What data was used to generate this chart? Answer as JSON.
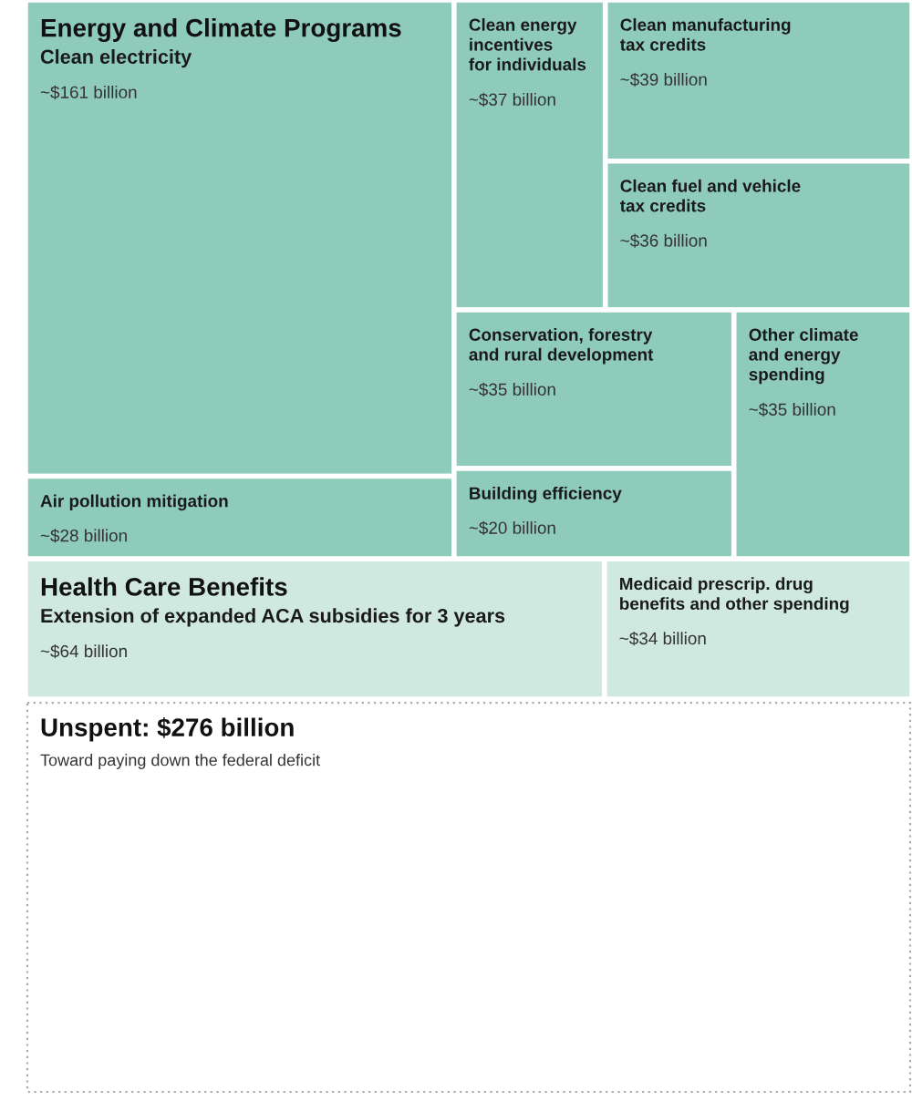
{
  "chart_data": {
    "type": "other",
    "annotations": [
      "Energy and Climate Programs",
      "Health Care Benefits"
    ],
    "categories": [
      "Clean electricity",
      "Air pollution mitigation",
      "Clean energy\nincentives\nfor individuals",
      "Clean manufacturing\ntax credits",
      "Clean fuel and vehicle\ntax credits",
      "Conservation, forestry\nand rural development",
      "Building efficiency",
      "Other climate\nand energy\nspending",
      "Extension of expanded ACA subsidies for 3 years",
      "Medicaid prescrip. drug\nbenefits and other spending",
      "Toward paying down the federal deficit"
    ],
    "values": [
      161,
      28,
      37,
      39,
      36,
      35,
      20,
      35,
      64,
      34,
      276
    ],
    "value_labels": [
      "~$161 billion",
      "~$28 billion",
      "~$37 billion",
      "~$39 billion",
      "~$36 billion",
      "~$35 billion",
      "~$20 billion",
      "~$35 billion",
      "~$64 billion",
      "~$34 billion",
      "Unspent: $276 billion"
    ],
    "colors": [
      "#8fcbbb",
      "#8fcbbb",
      "#8fcbbb",
      "#8fcbbb",
      "#8fcbbb",
      "#8fcbbb",
      "#8fcbbb",
      "#8fcbbb",
      "#cfe9e1",
      "#cfe9e1",
      "#ffffff"
    ]
  }
}
